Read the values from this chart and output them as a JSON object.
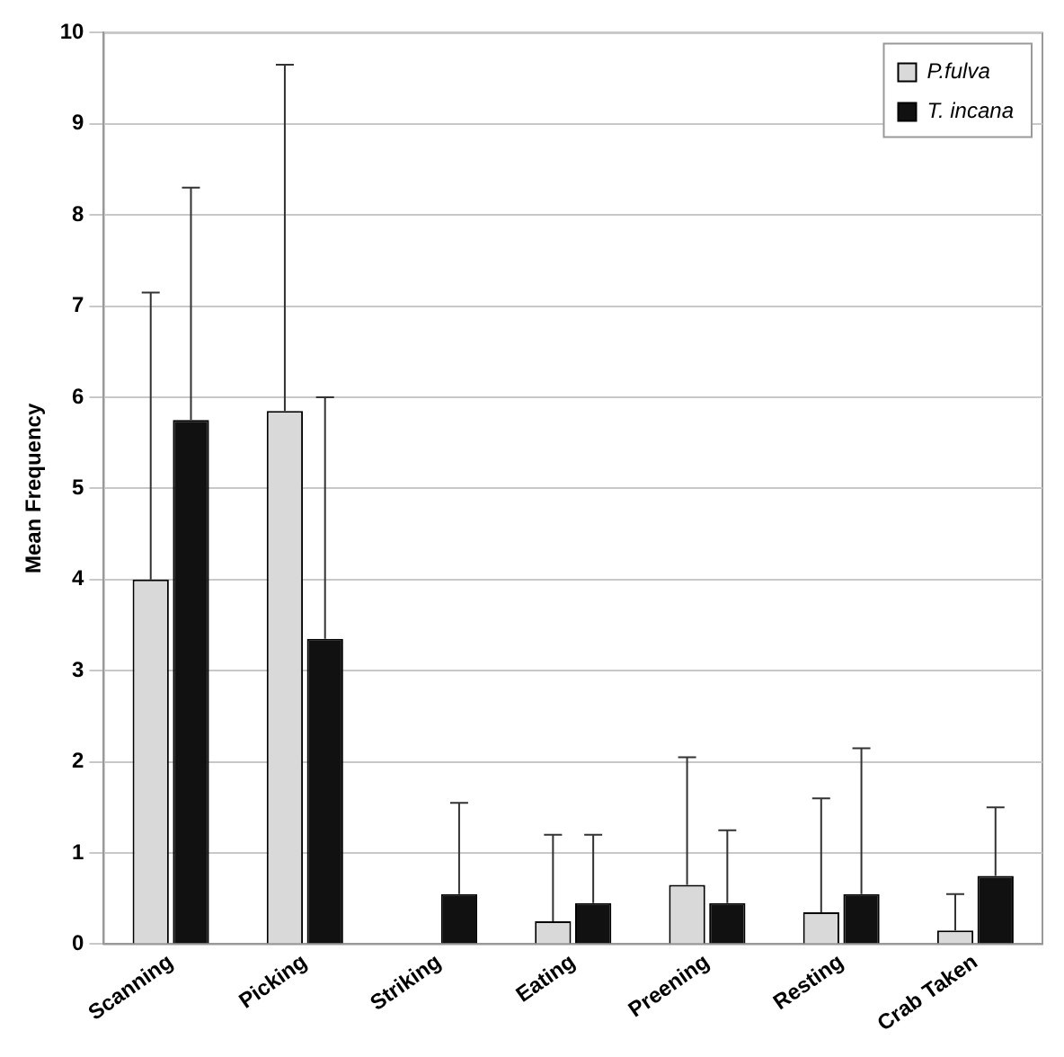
{
  "chart_data": {
    "type": "bar",
    "ylabel": "Mean Frequency",
    "categories": [
      "Scanning",
      "Picking",
      "Striking",
      "Eating",
      "Preening",
      "Resting",
      "Crab Taken"
    ],
    "series": [
      {
        "name": "P.fulva",
        "color": "#d9d9d9",
        "values": [
          4.0,
          5.85,
          0,
          0.25,
          0.65,
          0.35,
          0.15
        ],
        "errors": [
          [
            4.0,
            7.15
          ],
          [
            5.85,
            9.65
          ],
          null,
          [
            0.25,
            1.2
          ],
          [
            0.65,
            2.05
          ],
          [
            0.35,
            1.6
          ],
          [
            0.15,
            0.55
          ]
        ]
      },
      {
        "name": "T. incana",
        "color": "#111111",
        "values": [
          5.75,
          3.35,
          0.55,
          0.45,
          0.45,
          0.55,
          0.75
        ],
        "errors": [
          [
            5.75,
            8.3
          ],
          [
            3.35,
            6.0
          ],
          [
            0.55,
            1.55
          ],
          [
            0.45,
            1.2
          ],
          [
            0.45,
            1.25
          ],
          [
            0.55,
            2.15
          ],
          [
            0.75,
            1.5
          ]
        ]
      }
    ],
    "ylim": [
      0,
      10
    ],
    "yticks": [
      0,
      1,
      2,
      3,
      4,
      5,
      6,
      7,
      8,
      9,
      10
    ],
    "grid": "y",
    "legend": "top right"
  }
}
